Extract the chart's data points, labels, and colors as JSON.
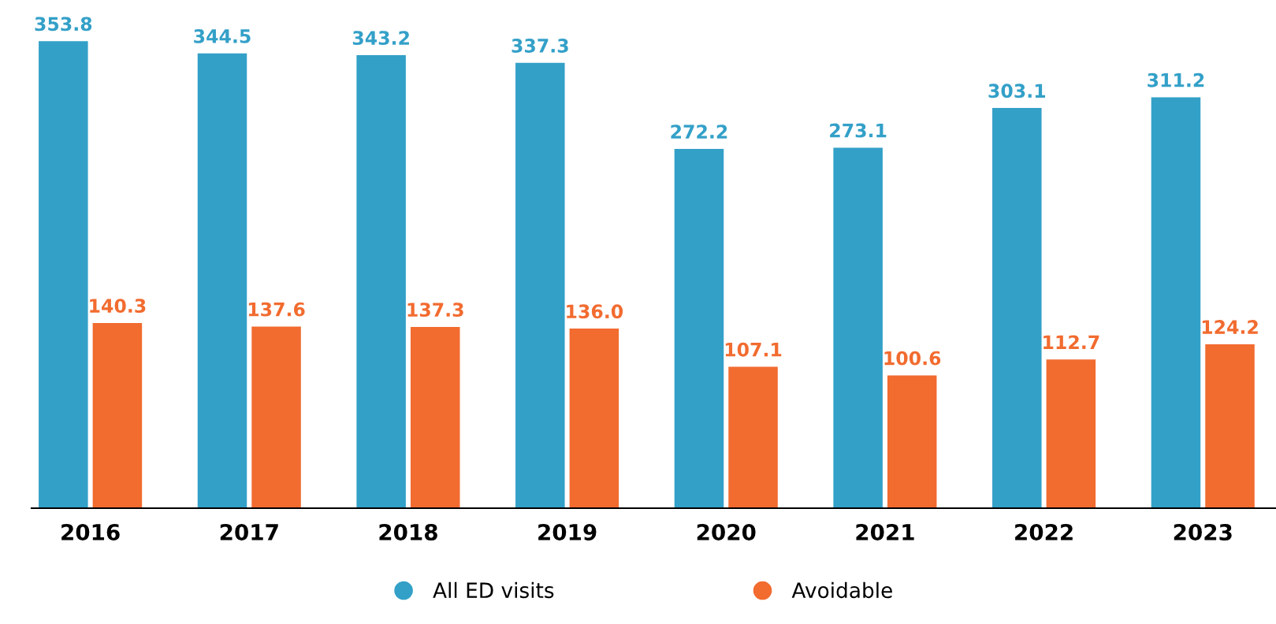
{
  "chart_data": {
    "type": "bar",
    "categories": [
      "2016",
      "2017",
      "2018",
      "2019",
      "2020",
      "2021",
      "2022",
      "2023"
    ],
    "series": [
      {
        "name": "All ED visits",
        "color": "#33a0c8",
        "values": [
          353.8,
          344.5,
          343.2,
          337.3,
          272.2,
          273.1,
          303.1,
          311.2
        ],
        "value_labels": [
          "353.8",
          "344.5",
          "343.2",
          "337.3",
          "272.2",
          "273.1",
          "303.1",
          "311.2"
        ]
      },
      {
        "name": "Avoidable",
        "color": "#f26b2f",
        "values": [
          140.3,
          137.6,
          137.3,
          136.0,
          107.1,
          100.6,
          112.7,
          124.2
        ],
        "value_labels": [
          "140.3",
          "137.6",
          "137.3",
          "136.0",
          "107.1",
          "100.6",
          "112.7",
          "124.2"
        ]
      }
    ],
    "legend": "bottom",
    "grid": false,
    "tick_labels": "x"
  }
}
